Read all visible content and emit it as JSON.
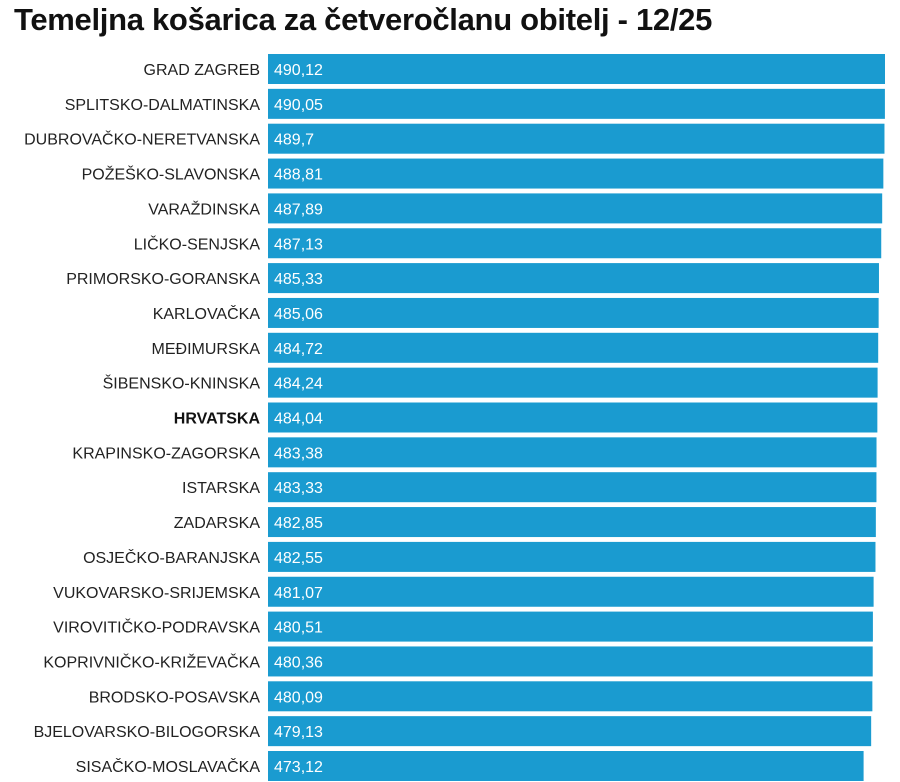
{
  "colors": {
    "bar": "#1a9bd0",
    "background": "#ffffff"
  },
  "chart_data": {
    "type": "bar",
    "orientation": "horizontal",
    "title": "Temeljna košarica za četveročlanu obitelj - 12/25",
    "xlabel": "",
    "ylabel": "",
    "xlim": [
      0,
      490.12
    ],
    "grid": false,
    "legend": "none",
    "categories": [
      "GRAD ZAGREB",
      "SPLITSKO-DALMATINSKA",
      "DUBROVAČKO-NERETVANSKA",
      "POŽEŠKO-SLAVONSKA",
      "VARAŽDINSKA",
      "LIČKO-SENJSKA",
      "PRIMORSKO-GORANSKA",
      "KARLOVAČKA",
      "MEĐIMURSKA",
      "ŠIBENSKO-KNINSKA",
      "HRVATSKA",
      "KRAPINSKO-ZAGORSKA",
      "ISTARSKA",
      "ZADARSKA",
      "OSJEČKO-BARANJSKA",
      "VUKOVARSKO-SRIJEMSKA",
      "VIROVITIČKO-PODRAVSKA",
      "KOPRIVNIČKO-KRIŽEVAČKA",
      "BRODSKO-POSAVSKA",
      "BJELOVARSKO-BILOGORSKA",
      "SISAČKO-MOSLAVAČKA"
    ],
    "values": [
      490.12,
      490.05,
      489.7,
      488.81,
      487.89,
      487.13,
      485.33,
      485.06,
      484.72,
      484.24,
      484.04,
      483.38,
      483.33,
      482.85,
      482.55,
      481.07,
      480.51,
      480.36,
      480.09,
      479.13,
      473.12
    ],
    "value_labels": [
      "490,12",
      "490,05",
      "489,7",
      "488,81",
      "487,89",
      "487,13",
      "485,33",
      "485,06",
      "484,72",
      "484,24",
      "484,04",
      "483,38",
      "483,33",
      "482,85",
      "482,55",
      "481,07",
      "480,51",
      "480,36",
      "480,09",
      "479,13",
      "473,12"
    ],
    "highlight_category": "HRVATSKA"
  }
}
